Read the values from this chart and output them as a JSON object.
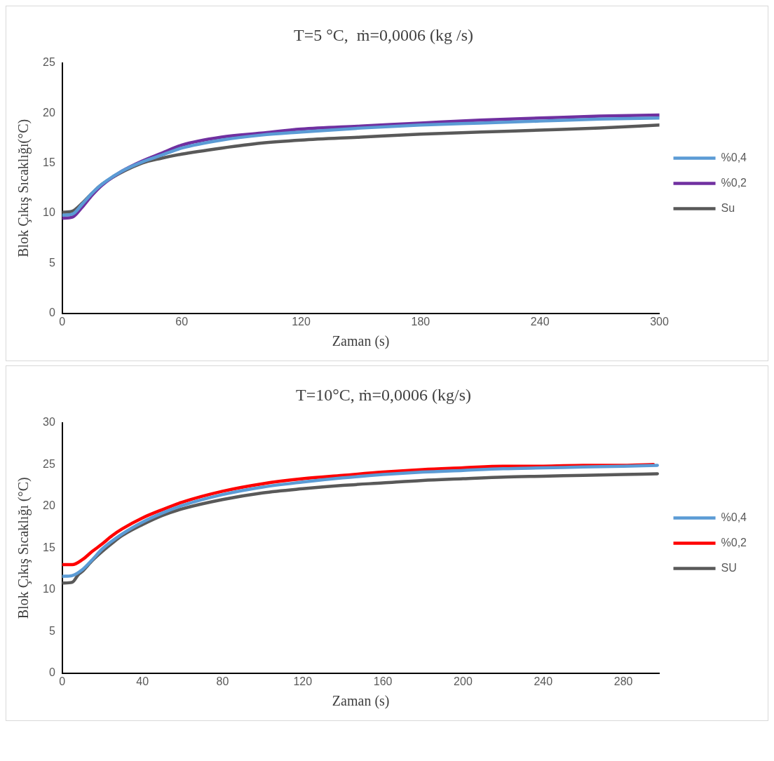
{
  "chart_data": [
    {
      "type": "line",
      "title": "T=5 °C,  ṁ=0,0006 (kg /s)",
      "xlabel": "Zaman (s)",
      "ylabel": "Blok Çıkış Sıcaklığı(°C)",
      "xlim": [
        0,
        300
      ],
      "xticks": [
        0,
        60,
        120,
        180,
        240,
        300
      ],
      "ylim": [
        0,
        25
      ],
      "yticks": [
        0,
        5,
        10,
        15,
        20,
        25
      ],
      "grid": false,
      "legend": "right",
      "marker": "none",
      "line_style": "solid",
      "series": [
        {
          "name": "%0,4",
          "color": "#5b9bd5",
          "x": [
            0,
            5,
            10,
            15,
            20,
            30,
            40,
            50,
            60,
            80,
            100,
            120,
            150,
            180,
            210,
            240,
            270,
            300
          ],
          "values": [
            9.8,
            9.9,
            10.9,
            12,
            12.9,
            14.2,
            15.1,
            15.8,
            16.5,
            17.3,
            17.8,
            18.1,
            18.5,
            18.8,
            19,
            19.2,
            19.4,
            19.5
          ]
        },
        {
          "name": "%0,2",
          "color": "#7030a0",
          "x": [
            0,
            5,
            10,
            15,
            20,
            30,
            40,
            50,
            60,
            80,
            100,
            120,
            150,
            180,
            210,
            240,
            270,
            300
          ],
          "values": [
            9.5,
            9.6,
            10.6,
            11.8,
            12.8,
            14.2,
            15.2,
            16,
            16.8,
            17.6,
            18,
            18.4,
            18.7,
            19,
            19.3,
            19.5,
            19.7,
            19.8
          ]
        },
        {
          "name": "Su",
          "color": "#595959",
          "x": [
            0,
            5,
            10,
            15,
            20,
            40,
            50,
            60,
            80,
            100,
            120,
            150,
            180,
            210,
            240,
            270,
            300
          ],
          "values": [
            10.1,
            10.2,
            11,
            12,
            12.9,
            15,
            15.5,
            15.9,
            16.5,
            17,
            17.3,
            17.6,
            17.9,
            18.1,
            18.3,
            18.5,
            18.8
          ]
        }
      ]
    },
    {
      "type": "line",
      "title": "T=10°C, ṁ=0,0006 (kg/s)",
      "xlabel": "Zaman (s)",
      "ylabel": "Blok Çıkış Sıcaklığı (°C)",
      "xlim": [
        0,
        298
      ],
      "xticks": [
        0,
        40,
        80,
        120,
        160,
        200,
        240,
        280
      ],
      "ylim": [
        0,
        30
      ],
      "yticks": [
        0,
        5,
        10,
        15,
        20,
        25,
        30
      ],
      "grid": false,
      "legend": "right",
      "marker": "none",
      "line_style": "solid",
      "series": [
        {
          "name": "%0,4",
          "color": "#5b9bd5",
          "x": [
            0,
            5,
            10,
            15,
            20,
            30,
            40,
            50,
            60,
            80,
            100,
            120,
            140,
            160,
            180,
            200,
            220,
            240,
            260,
            280,
            297
          ],
          "values": [
            11.6,
            11.7,
            12.4,
            13.6,
            14.9,
            16.7,
            18.1,
            19.2,
            20.1,
            21.4,
            22.3,
            22.9,
            23.4,
            23.8,
            24.1,
            24.3,
            24.5,
            24.6,
            24.7,
            24.8,
            24.9
          ]
        },
        {
          "name": "%0,2",
          "color": "#ff0000",
          "x": [
            0,
            5,
            10,
            15,
            20,
            25,
            30,
            40,
            50,
            60,
            80,
            100,
            120,
            140,
            160,
            180,
            200,
            220,
            240,
            260,
            280,
            295
          ],
          "values": [
            13,
            13,
            13.6,
            14.6,
            15.5,
            16.5,
            17.3,
            18.6,
            19.6,
            20.5,
            21.8,
            22.7,
            23.3,
            23.7,
            24.1,
            24.4,
            24.6,
            24.8,
            24.8,
            24.9,
            24.9,
            25
          ]
        },
        {
          "name": "SU",
          "color": "#595959",
          "x": [
            0,
            5,
            8,
            10,
            15,
            20,
            25,
            30,
            40,
            50,
            60,
            80,
            100,
            120,
            140,
            160,
            180,
            200,
            220,
            240,
            260,
            280,
            297
          ],
          "values": [
            10.8,
            10.9,
            11.8,
            12.2,
            13.5,
            14.6,
            15.6,
            16.5,
            17.8,
            18.9,
            19.7,
            20.8,
            21.6,
            22.1,
            22.5,
            22.8,
            23.1,
            23.3,
            23.5,
            23.6,
            23.7,
            23.8,
            23.9
          ]
        }
      ]
    }
  ]
}
